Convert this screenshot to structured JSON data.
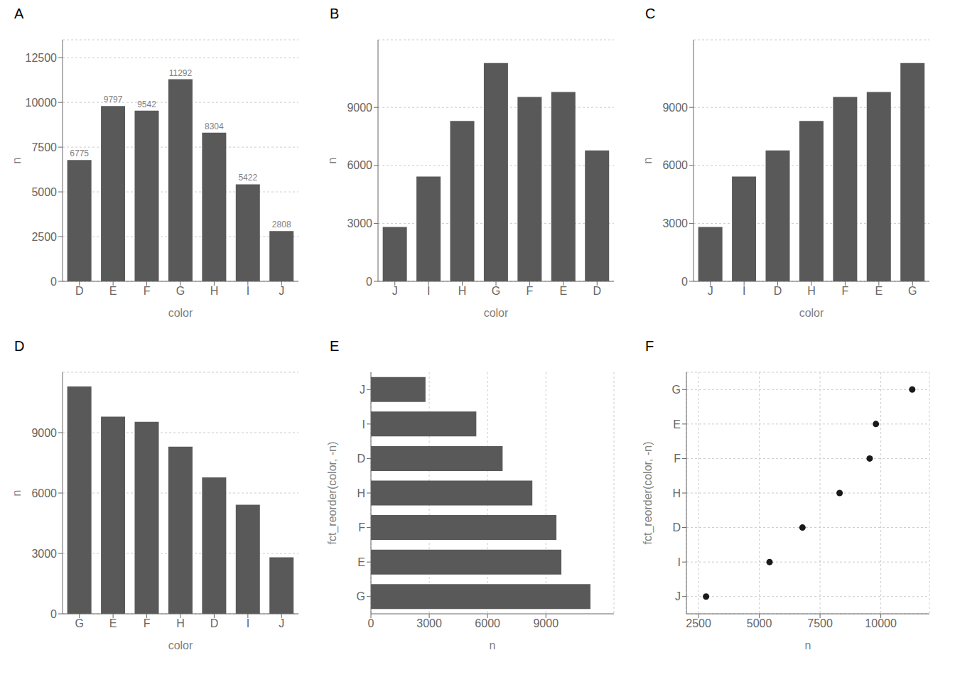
{
  "chart_data": [
    {
      "type": "bar",
      "title": "A",
      "categories": [
        "D",
        "E",
        "F",
        "G",
        "H",
        "I",
        "J"
      ],
      "values": [
        6775,
        9797,
        9542,
        11292,
        8304,
        5422,
        2808
      ],
      "data_labels": true,
      "x_label": "color",
      "y_label": "n",
      "ylim": [
        0,
        13500
      ],
      "yticks": [
        0,
        2500,
        5000,
        7500,
        10000,
        12500
      ],
      "color": "#595959",
      "grid": "y"
    },
    {
      "type": "bar",
      "title": "B",
      "categories": [
        "J",
        "I",
        "H",
        "G",
        "F",
        "E",
        "D"
      ],
      "values": [
        2808,
        5422,
        8304,
        11292,
        9542,
        9797,
        6775
      ],
      "x_label": "color",
      "y_label": "n",
      "ylim": [
        0,
        12500
      ],
      "yticks": [
        0,
        3000,
        6000,
        9000
      ],
      "color": "#595959",
      "grid": "y"
    },
    {
      "type": "bar",
      "title": "C",
      "categories": [
        "J",
        "I",
        "D",
        "H",
        "F",
        "E",
        "G"
      ],
      "values": [
        2808,
        5422,
        6775,
        8304,
        9542,
        9797,
        11292
      ],
      "x_label": "color",
      "y_label": "n",
      "ylim": [
        0,
        12500
      ],
      "yticks": [
        0,
        3000,
        6000,
        9000
      ],
      "color": "#595959",
      "grid": "y"
    },
    {
      "type": "bar",
      "title": "D",
      "categories": [
        "G",
        "E",
        "F",
        "H",
        "D",
        "I",
        "J"
      ],
      "values": [
        11292,
        9797,
        9542,
        8304,
        6775,
        5422,
        2808
      ],
      "x_label": "color",
      "y_label": "n",
      "ylim": [
        0,
        12000
      ],
      "yticks": [
        0,
        3000,
        6000,
        9000
      ],
      "color": "#595959",
      "grid": "y"
    },
    {
      "type": "bar",
      "orientation": "horizontal",
      "title": "E",
      "categories": [
        "G",
        "E",
        "F",
        "H",
        "D",
        "I",
        "J"
      ],
      "values": [
        11292,
        9797,
        9542,
        8304,
        6775,
        5422,
        2808
      ],
      "x_label": "n",
      "y_label": "fct_reorder(color, -n)",
      "xlim": [
        0,
        12500
      ],
      "xticks": [
        0,
        3000,
        6000,
        9000
      ],
      "color": "#595959",
      "grid": "x"
    },
    {
      "type": "scatter",
      "title": "F",
      "categories": [
        "G",
        "E",
        "F",
        "H",
        "D",
        "I",
        "J"
      ],
      "values": [
        11292,
        9797,
        9542,
        8304,
        6775,
        5422,
        2808
      ],
      "x_label": "n",
      "y_label": "fct_reorder(color, -n)",
      "xlim": [
        2000,
        12000
      ],
      "xticks": [
        2500,
        5000,
        7500,
        10000
      ],
      "color": "#1a1a1a",
      "grid": true
    }
  ]
}
